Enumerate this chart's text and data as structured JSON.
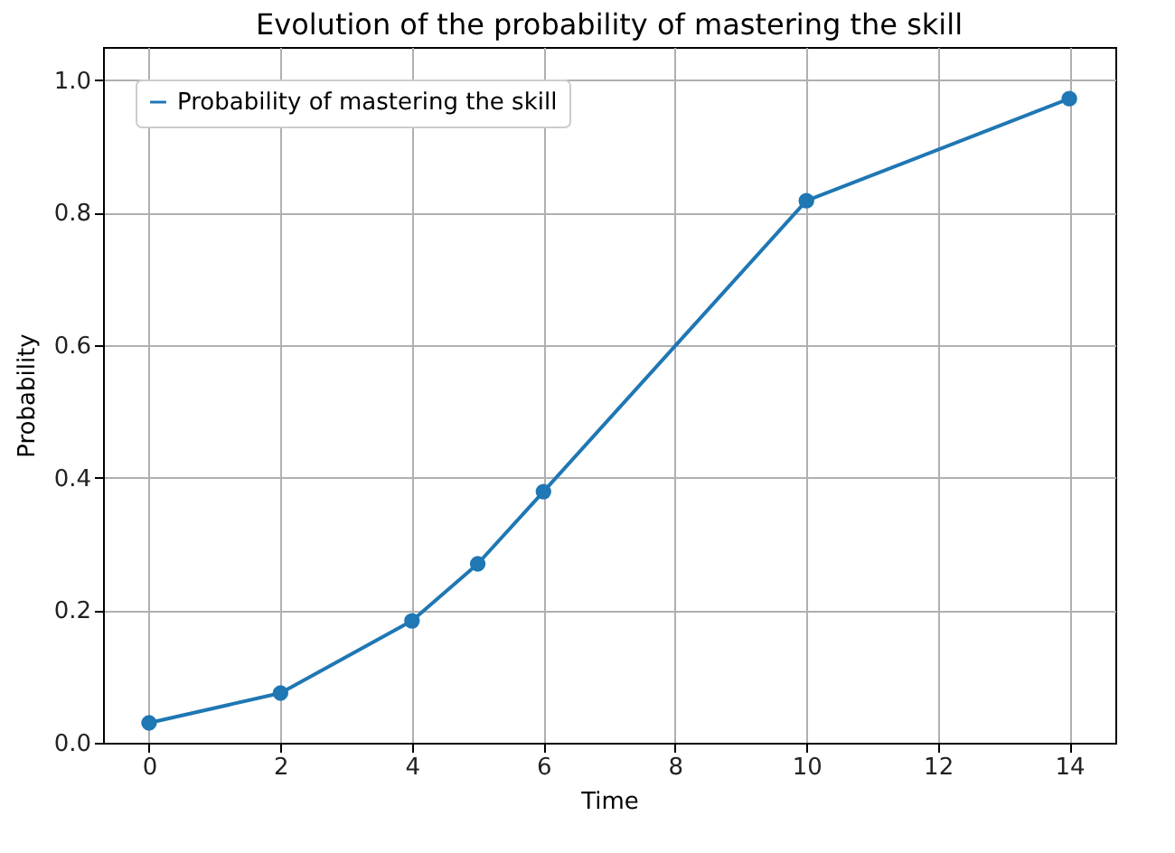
{
  "chart_data": {
    "type": "line",
    "title": "Evolution of the probability of mastering the skill",
    "xlabel": "Time",
    "ylabel": "Probability",
    "x": [
      0,
      2,
      4,
      5,
      6,
      10,
      14
    ],
    "series": [
      {
        "name": "Probability of mastering the skill",
        "color": "#1f77b4",
        "values": [
          0.03,
          0.075,
          0.184,
          0.27,
          0.379,
          0.818,
          0.972
        ]
      }
    ],
    "xlim": [
      -0.7,
      14.7
    ],
    "xticks": [
      0,
      2,
      4,
      6,
      8,
      10,
      12,
      14
    ],
    "ylim": [
      0,
      1.05
    ],
    "yticks": [
      {
        "value": 0,
        "label": "0.0"
      },
      {
        "value": 0.2,
        "label": "0.2"
      },
      {
        "value": 0.4,
        "label": "0.4"
      },
      {
        "value": 0.6,
        "label": "0.6"
      },
      {
        "value": 0.8,
        "label": "0.8"
      },
      {
        "value": 1,
        "label": "1.0"
      }
    ],
    "grid": true,
    "legend": "top left",
    "marker": "circle",
    "line_style": "solid"
  }
}
